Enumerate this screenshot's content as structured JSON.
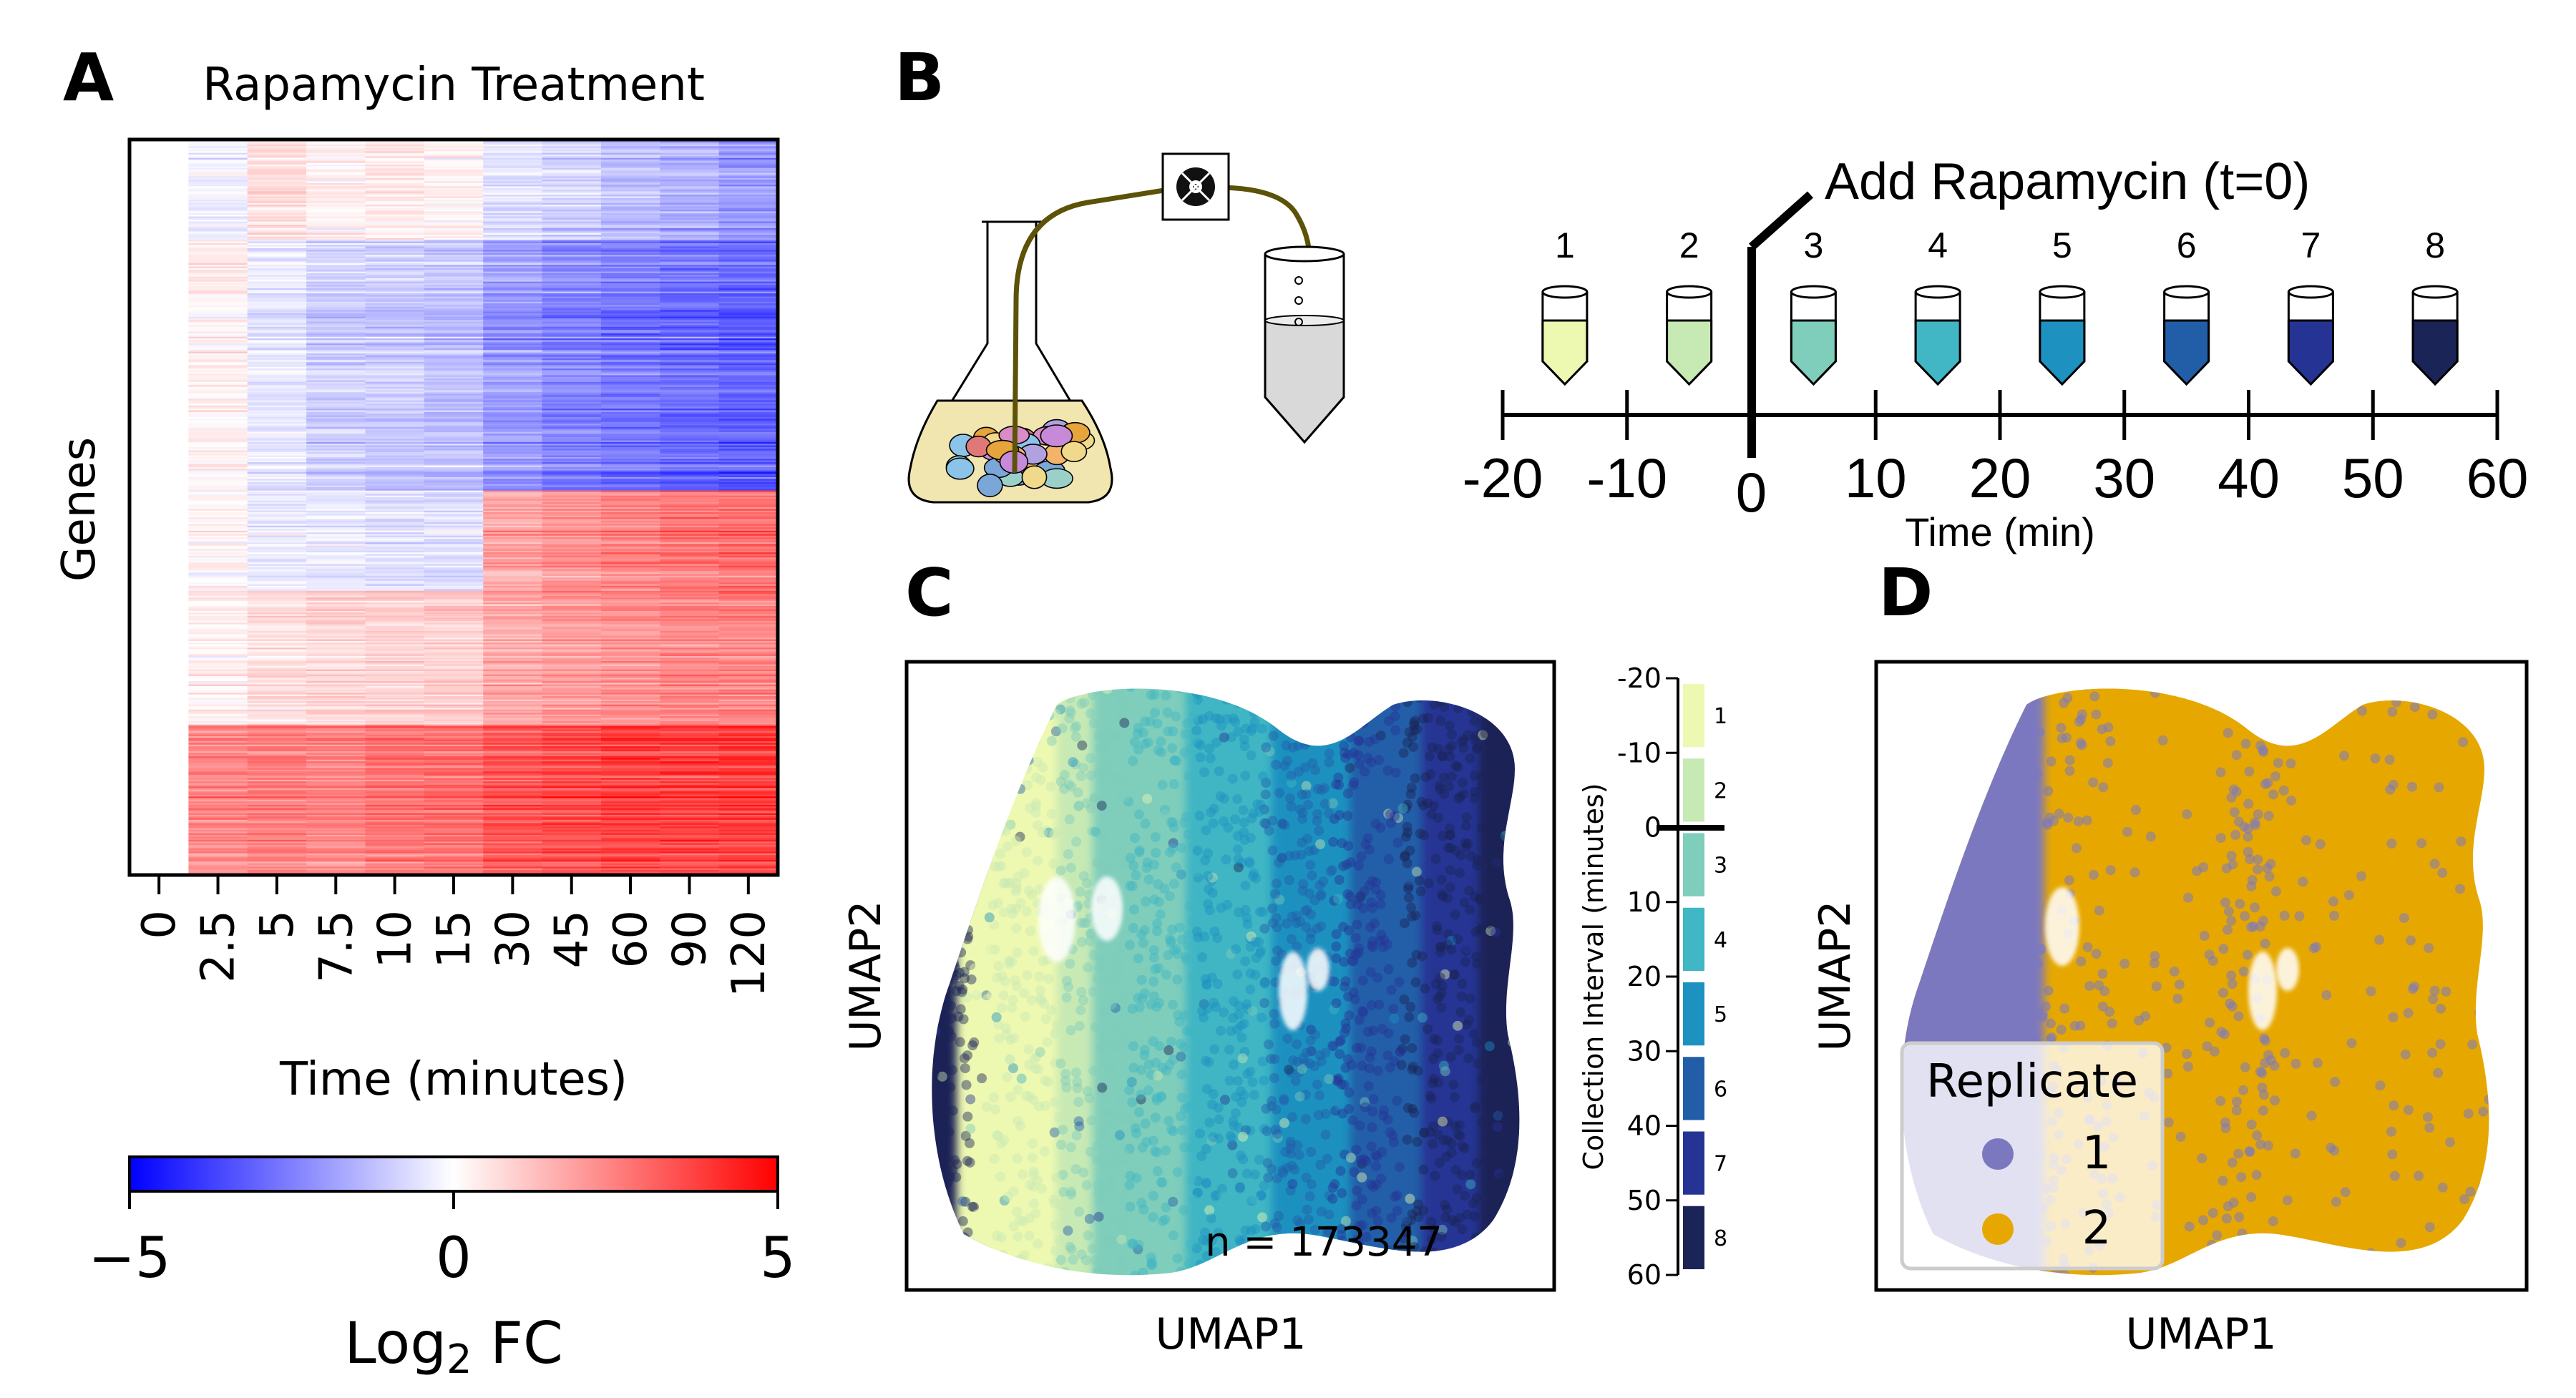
{
  "panels": {
    "a": {
      "letter": "A",
      "title": "Rapamycin Treatment",
      "ylabel": "Genes",
      "xlabel": "Time (minutes)",
      "colorbar": {
        "label_main": "Log",
        "label_sub": "2",
        "label_tail": " FC",
        "ticks": [
          "−5",
          "0",
          "5"
        ]
      }
    },
    "b": {
      "letter": "B",
      "event_label": "Add Rapamycin (t=0)",
      "tube_numbers": [
        "1",
        "2",
        "3",
        "4",
        "5",
        "6",
        "7",
        "8"
      ],
      "axis_ticks": [
        "-20",
        "-10",
        "0",
        "10",
        "20",
        "30",
        "40",
        "50",
        "60"
      ],
      "axis_label": "Time (min)"
    },
    "c": {
      "letter": "C",
      "xlabel": "UMAP1",
      "ylabel": "UMAP2",
      "count_text": "n = 173347",
      "colorbar_label": "Collection Interval (minutes)",
      "colorbar_ticks": [
        "-20",
        "-10",
        "0",
        "10",
        "20",
        "30",
        "40",
        "50",
        "60"
      ],
      "interval_labels": [
        "1",
        "2",
        "3",
        "4",
        "5",
        "6",
        "7",
        "8"
      ]
    },
    "d": {
      "letter": "D",
      "xlabel": "UMAP1",
      "ylabel": "UMAP2",
      "legend_title": "Replicate",
      "legend_items": [
        "1",
        "2"
      ]
    }
  },
  "chart_data": [
    {
      "type": "heatmap",
      "panel": "A",
      "title": "Rapamycin Treatment",
      "xlabel": "Time (minutes)",
      "ylabel": "Genes",
      "categories": [
        "0",
        "2.5",
        "5",
        "7.5",
        "10",
        "15",
        "30",
        "45",
        "60",
        "90",
        "120"
      ],
      "colorbar_range": [
        -5,
        5
      ],
      "colorbar_label": "Log2 FC",
      "gene_blocks": [
        {
          "name": "block1",
          "rows": 60,
          "values": [
            0,
            -0.3,
            0.6,
            0.2,
            0.4,
            0.2,
            -0.6,
            -0.9,
            -1.3,
            -1.6,
            -2.0
          ]
        },
        {
          "name": "block2",
          "rows": 150,
          "values": [
            0,
            0.3,
            -0.4,
            -0.9,
            -1.0,
            -1.2,
            -1.9,
            -2.3,
            -2.6,
            -2.8,
            -3.0
          ]
        },
        {
          "name": "block3",
          "rows": 60,
          "values": [
            0,
            0.2,
            -0.3,
            -0.4,
            -0.5,
            -0.6,
            1.8,
            2.2,
            2.5,
            2.7,
            2.9
          ]
        },
        {
          "name": "block4",
          "rows": 80,
          "values": [
            0,
            0.3,
            0.7,
            0.8,
            0.9,
            1.0,
            1.7,
            2.0,
            2.2,
            2.4,
            2.5
          ]
        },
        {
          "name": "block5",
          "rows": 90,
          "values": [
            0,
            2.4,
            2.6,
            2.5,
            2.8,
            2.9,
            3.4,
            3.6,
            3.8,
            3.8,
            3.9
          ]
        }
      ]
    },
    {
      "type": "scatter",
      "panel": "C",
      "xlabel": "UMAP1",
      "ylabel": "UMAP2",
      "n": 173347,
      "color_by": "Collection Interval (minutes)",
      "colorbar_range": [
        -20,
        60
      ],
      "interval_colors": [
        "#edf8b1",
        "#c7e9b4",
        "#7fcdbb",
        "#41b6c4",
        "#1d91c0",
        "#225ea8",
        "#253494",
        "#1a2457"
      ]
    },
    {
      "type": "scatter",
      "panel": "D",
      "xlabel": "UMAP1",
      "ylabel": "UMAP2",
      "legend": "Replicate",
      "series": [
        {
          "name": "1",
          "color": "#7b78c0"
        },
        {
          "name": "2",
          "color": "#e6a800"
        }
      ]
    }
  ]
}
